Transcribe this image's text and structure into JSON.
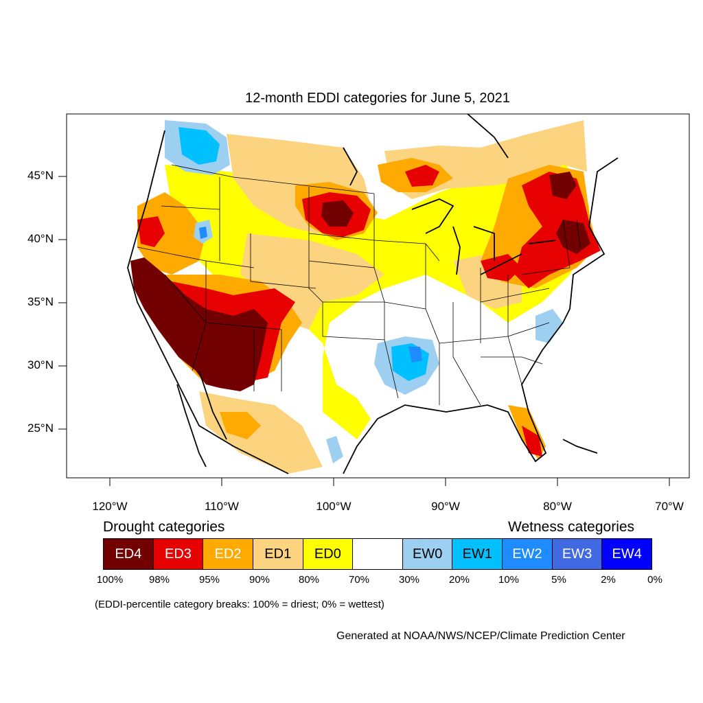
{
  "title": "12-month EDDI categories for June 5, 2021",
  "axes": {
    "lat_labels": [
      "45°N",
      "40°N",
      "35°N",
      "30°N",
      "25°N"
    ],
    "lon_labels": [
      "120°W",
      "110°W",
      "100°W",
      "90°W",
      "80°W",
      "70°W"
    ]
  },
  "legend": {
    "drought_label": "Drought categories",
    "wetness_label": "Wetness categories",
    "categories": [
      {
        "label": "ED4",
        "color": "#730000",
        "text_color": "#ffffff"
      },
      {
        "label": "ED3",
        "color": "#e60000",
        "text_color": "#ffffff"
      },
      {
        "label": "ED2",
        "color": "#ffaa00",
        "text_color": "#ffffff"
      },
      {
        "label": "ED1",
        "color": "#fcd37f",
        "text_color": "#000000"
      },
      {
        "label": "ED0",
        "color": "#ffff00",
        "text_color": "#000000"
      },
      {
        "label": "",
        "color": "#ffffff",
        "text_color": "#000000"
      },
      {
        "label": "EW0",
        "color": "#9dcff0",
        "text_color": "#000000"
      },
      {
        "label": "EW1",
        "color": "#00c0ff",
        "text_color": "#000000"
      },
      {
        "label": "EW2",
        "color": "#1e8cff",
        "text_color": "#ffffff"
      },
      {
        "label": "EW3",
        "color": "#4169e1",
        "text_color": "#ffffff"
      },
      {
        "label": "EW4",
        "color": "#0000ff",
        "text_color": "#ffffff"
      }
    ],
    "breaks": [
      "100%",
      "98%",
      "95%",
      "90%",
      "80%",
      "70%",
      "30%",
      "20%",
      "10%",
      "5%",
      "2%",
      "0%"
    ]
  },
  "note": "(EDDI-percentile category breaks: 100% = driest; 0% = wettest)",
  "credit": "Generated at NOAA/NWS/NCEP/Climate Prediction Center"
}
